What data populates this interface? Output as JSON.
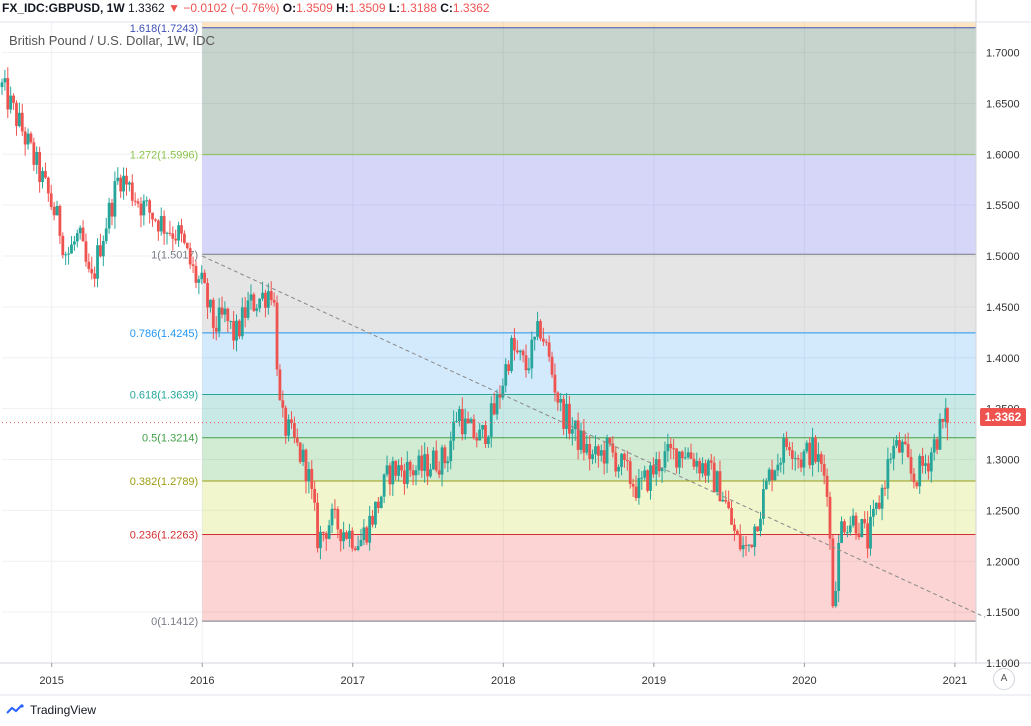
{
  "header": {
    "symbol": "FX_IDC:GBPUSD, 1W",
    "last": "1.3362",
    "arrow": "▼",
    "change": "−0.0102 (−0.76%)",
    "o_label": "O:",
    "o_value": "1.3509",
    "h_label": "H:",
    "h_value": "1.3509",
    "l_label": "L:",
    "l_value": "1.3188",
    "c_label": "C:",
    "c_value": "1.3362"
  },
  "subtitle": "British Pound / U.S. Dollar, 1W, IDC",
  "last_price_tag": "1.3362",
  "auto_button": "A",
  "brand": "TradingView",
  "colors": {
    "up": "#26a69a",
    "down": "#ef5350",
    "trend": "#888888"
  },
  "chart_data": {
    "type": "candlestick",
    "title": "British Pound / U.S. Dollar, 1W, IDC",
    "ylim": [
      1.1,
      1.73
    ],
    "xlim": [
      2014.67,
      2021.14
    ],
    "grid": true,
    "y_ticks": [
      "1.1000",
      "1.1500",
      "1.2000",
      "1.2500",
      "1.3000",
      "1.3500",
      "1.4000",
      "1.4500",
      "1.5000",
      "1.5500",
      "1.6000",
      "1.6500",
      "1.7000"
    ],
    "x_ticks": [
      {
        "t": 2015,
        "label": "2015"
      },
      {
        "t": 2016,
        "label": "2016"
      },
      {
        "t": 2017,
        "label": "2017"
      },
      {
        "t": 2018,
        "label": "2018"
      },
      {
        "t": 2019,
        "label": "2019"
      },
      {
        "t": 2020,
        "label": "2020"
      },
      {
        "t": 2021,
        "label": "2021"
      }
    ],
    "fib_start": 2016.0,
    "fib_levels": [
      {
        "label": "0(1.1412)",
        "value": 1.1412,
        "line": "#787b86",
        "fill": "rgba(239,83,80,0.25)"
      },
      {
        "label": "0.236(1.2263)",
        "value": 1.2263,
        "line": "#d32f2f",
        "fill": "rgba(205,220,57,0.25)"
      },
      {
        "label": "0.382(1.2789)",
        "value": 1.2789,
        "line": "#9c9d12",
        "fill": "rgba(76,175,80,0.25)"
      },
      {
        "label": "0.5(1.3214)",
        "value": 1.3214,
        "line": "#43a047",
        "fill": "rgba(38,166,154,0.25)"
      },
      {
        "label": "0.618(1.3639)",
        "value": 1.3639,
        "line": "#26a69a",
        "fill": "rgba(33,150,243,0.2)"
      },
      {
        "label": "0.786(1.4245)",
        "value": 1.4245,
        "line": "#2196f3",
        "fill": "rgba(180,180,180,0.35)"
      },
      {
        "label": "1(1.5017)",
        "value": 1.5017,
        "line": "#787b86",
        "fill": "rgba(90,90,230,0.25)"
      },
      {
        "label": "1.272(1.5996)",
        "value": 1.5996,
        "line": "#8bc34a",
        "fill": "rgba(70,110,90,0.3)"
      },
      {
        "label": "1.618(1.7243)",
        "value": 1.7243,
        "line": "#3f51b5",
        "fill": null
      }
    ],
    "trendline": {
      "start": [
        2016.0,
        1.5
      ],
      "end": [
        2021.2,
        1.145
      ]
    },
    "last_price": 1.3362,
    "anchors": [
      [
        2014.67,
        1.666
      ],
      [
        2014.8,
        1.625
      ],
      [
        2014.95,
        1.57
      ],
      [
        2015.05,
        1.53
      ],
      [
        2015.1,
        1.5
      ],
      [
        2015.18,
        1.52
      ],
      [
        2015.26,
        1.47
      ],
      [
        2015.32,
        1.51
      ],
      [
        2015.45,
        1.58
      ],
      [
        2015.5,
        1.57
      ],
      [
        2015.6,
        1.55
      ],
      [
        2015.75,
        1.53
      ],
      [
        2015.85,
        1.52
      ],
      [
        2015.95,
        1.48
      ],
      [
        2016.0,
        1.47
      ],
      [
        2016.08,
        1.43
      ],
      [
        2016.15,
        1.44
      ],
      [
        2016.22,
        1.42
      ],
      [
        2016.3,
        1.45
      ],
      [
        2016.4,
        1.46
      ],
      [
        2016.47,
        1.47
      ],
      [
        2016.52,
        1.34
      ],
      [
        2016.6,
        1.32
      ],
      [
        2016.7,
        1.29
      ],
      [
        2016.77,
        1.22
      ],
      [
        2016.85,
        1.24
      ],
      [
        2016.95,
        1.23
      ],
      [
        2017.05,
        1.22
      ],
      [
        2017.15,
        1.25
      ],
      [
        2017.25,
        1.29
      ],
      [
        2017.35,
        1.29
      ],
      [
        2017.45,
        1.29
      ],
      [
        2017.55,
        1.3
      ],
      [
        2017.62,
        1.3
      ],
      [
        2017.7,
        1.35
      ],
      [
        2017.75,
        1.33
      ],
      [
        2017.85,
        1.32
      ],
      [
        2017.95,
        1.35
      ],
      [
        2018.05,
        1.41
      ],
      [
        2018.15,
        1.39
      ],
      [
        2018.25,
        1.43
      ],
      [
        2018.3,
        1.4
      ],
      [
        2018.38,
        1.35
      ],
      [
        2018.5,
        1.32
      ],
      [
        2018.6,
        1.3
      ],
      [
        2018.7,
        1.31
      ],
      [
        2018.8,
        1.29
      ],
      [
        2018.9,
        1.27
      ],
      [
        2019.0,
        1.29
      ],
      [
        2019.05,
        1.3
      ],
      [
        2019.2,
        1.31
      ],
      [
        2019.35,
        1.29
      ],
      [
        2019.45,
        1.27
      ],
      [
        2019.55,
        1.22
      ],
      [
        2019.62,
        1.21
      ],
      [
        2019.68,
        1.24
      ],
      [
        2019.78,
        1.29
      ],
      [
        2019.9,
        1.32
      ],
      [
        2019.97,
        1.3
      ],
      [
        2020.05,
        1.31
      ],
      [
        2020.15,
        1.28
      ],
      [
        2020.19,
        1.16
      ],
      [
        2020.25,
        1.24
      ],
      [
        2020.35,
        1.24
      ],
      [
        2020.42,
        1.22
      ],
      [
        2020.5,
        1.26
      ],
      [
        2020.58,
        1.31
      ],
      [
        2020.65,
        1.31
      ],
      [
        2020.72,
        1.28
      ],
      [
        2020.82,
        1.3
      ],
      [
        2020.9,
        1.33
      ],
      [
        2020.95,
        1.34
      ]
    ],
    "last_bar": {
      "open": 1.3509,
      "high": 1.3509,
      "low": 1.3188,
      "close": 1.3362
    }
  }
}
